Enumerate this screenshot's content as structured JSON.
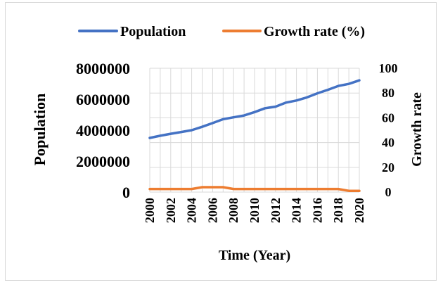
{
  "chart_data": {
    "type": "line",
    "title": "",
    "xlabel": "Time (Year)",
    "ylabel": "Population",
    "y2label": "Growth rate",
    "legend_position": "top",
    "grid": true,
    "x": [
      2000,
      2001,
      2002,
      2003,
      2004,
      2005,
      2006,
      2007,
      2008,
      2009,
      2010,
      2011,
      2012,
      2013,
      2014,
      2015,
      2016,
      2017,
      2018,
      2019,
      2020
    ],
    "x_tick_labels": [
      "2000",
      "2002",
      "2004",
      "2006",
      "2008",
      "2010",
      "2012",
      "2014",
      "2016",
      "2018",
      "2020"
    ],
    "ylim": [
      0,
      8000000
    ],
    "y_tick_labels": [
      "0",
      "2000000",
      "4000000",
      "6000000",
      "8000000"
    ],
    "y2lim": [
      0,
      100
    ],
    "y2_tick_labels": [
      "0",
      "20",
      "40",
      "60",
      "80",
      "100"
    ],
    "series": [
      {
        "name": "Population",
        "axis": "left",
        "color": "#4472c4",
        "values": [
          3500000,
          3640000,
          3770000,
          3880000,
          4000000,
          4220000,
          4460000,
          4710000,
          4830000,
          4950000,
          5170000,
          5420000,
          5520000,
          5780000,
          5920000,
          6120000,
          6380000,
          6610000,
          6860000,
          6990000,
          7220000
        ]
      },
      {
        "name": "Growth rate (%)",
        "axis": "right",
        "color": "#ed7d31",
        "values": [
          2.5,
          2.5,
          2.5,
          2.5,
          2.5,
          4,
          4,
          4,
          2.5,
          2.5,
          2.5,
          2.5,
          2.5,
          2.5,
          2.5,
          2.5,
          2.5,
          2.5,
          2.5,
          1,
          1
        ]
      }
    ]
  }
}
